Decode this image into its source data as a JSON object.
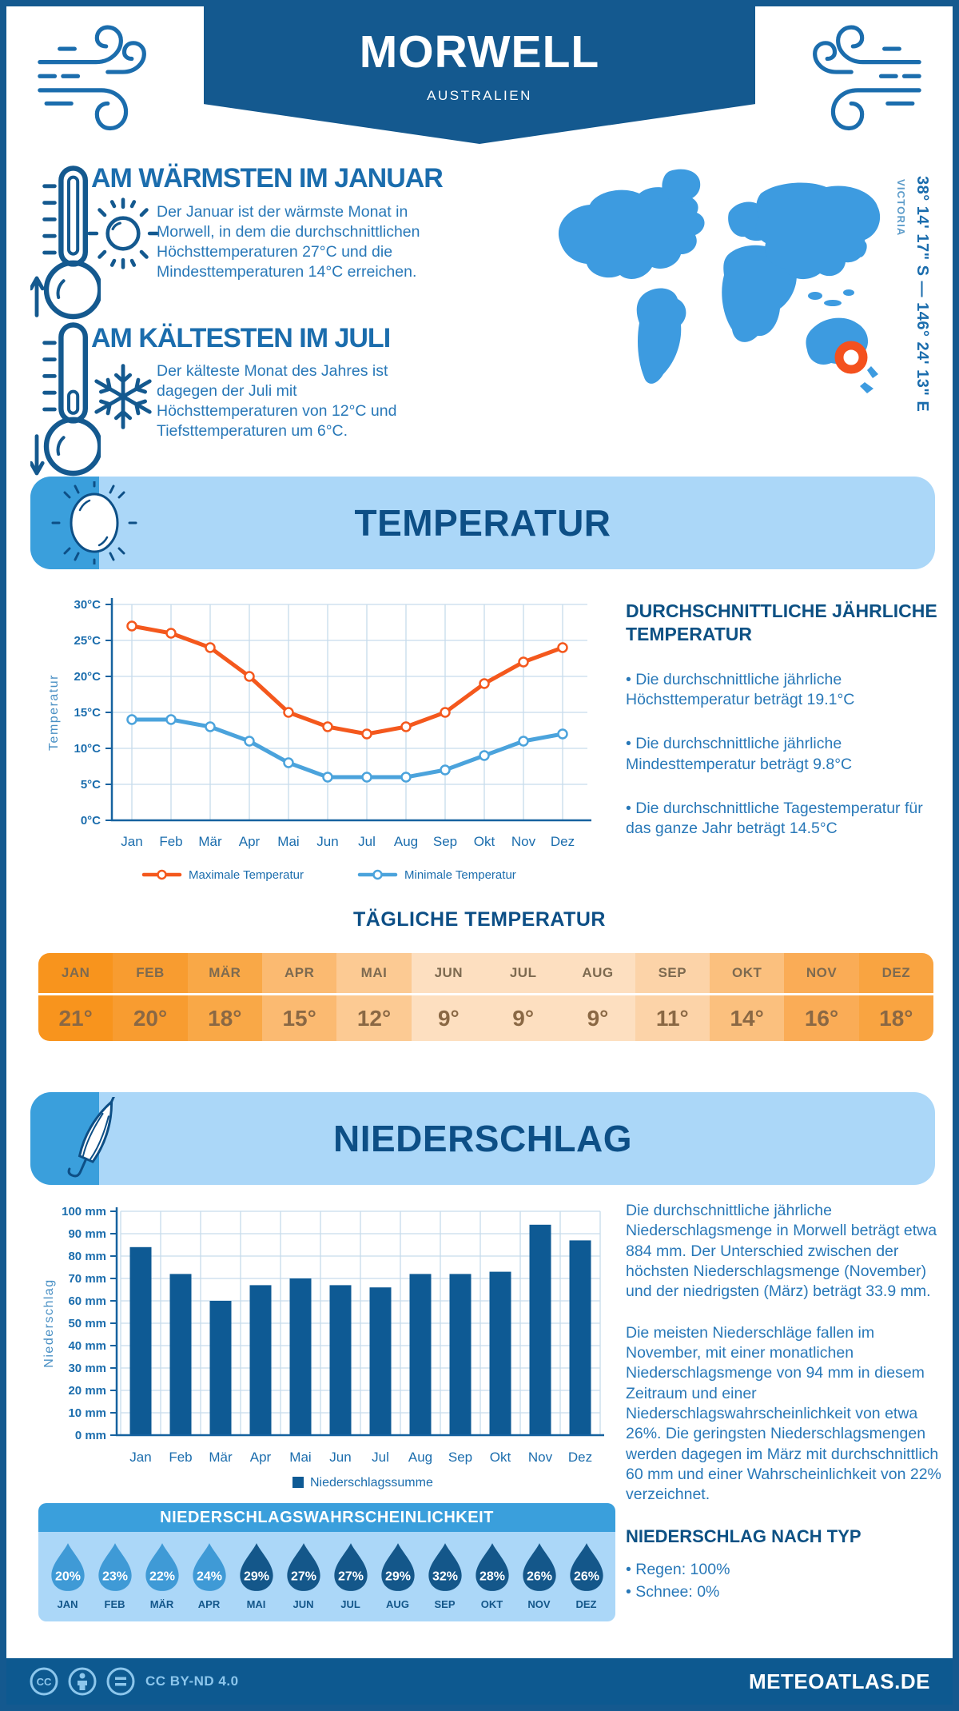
{
  "header": {
    "title": "MORWELL",
    "subtitle": "AUSTRALIEN"
  },
  "location": {
    "coordinates": "38° 14' 17\" S — 146° 24' 13\" E",
    "region": "VICTORIA"
  },
  "sections": {
    "warmest": {
      "title": "AM WÄRMSTEN IM JANUAR",
      "text": "Der Januar ist der wärmste Monat in Morwell, in dem die durchschnittlichen Höchsttemperaturen 27°C und die Mindesttemperaturen 14°C erreichen."
    },
    "coldest": {
      "title": "AM KÄLTESTEN IM JULI",
      "text": "Der kälteste Monat des Jahres ist dagegen der Juli mit Höchsttemperaturen von 12°C und Tiefsttemperaturen um 6°C."
    }
  },
  "temperature": {
    "banner_title": "TEMPERATUR",
    "annual": {
      "heading": "DURCHSCHNITTLICHE JÄHRLICHE TEMPERATUR",
      "bullets": [
        "• Die durchschnittliche jährliche Höchsttemperatur beträgt 19.1°C",
        "• Die durchschnittliche jährliche Mindesttemperatur beträgt 9.8°C",
        "• Die durchschnittliche Tagestemperatur für das ganze Jahr beträgt 14.5°C"
      ]
    },
    "daily": {
      "heading": "TÄGLICHE TEMPERATUR",
      "columns": [
        {
          "month": "JAN",
          "value": "21°",
          "color": "#F8941D"
        },
        {
          "month": "FEB",
          "value": "20°",
          "color": "#F89C30"
        },
        {
          "month": "MÄR",
          "value": "18°",
          "color": "#F9A847"
        },
        {
          "month": "APR",
          "value": "15°",
          "color": "#FBBA71"
        },
        {
          "month": "MAI",
          "value": "12°",
          "color": "#FCCA93"
        },
        {
          "month": "JUN",
          "value": "9°",
          "color": "#FDDFC0"
        },
        {
          "month": "JUL",
          "value": "9°",
          "color": "#FDDFC0"
        },
        {
          "month": "AUG",
          "value": "9°",
          "color": "#FDDFC0"
        },
        {
          "month": "SEP",
          "value": "11°",
          "color": "#FCD3A8"
        },
        {
          "month": "OKT",
          "value": "14°",
          "color": "#FBC07E"
        },
        {
          "month": "NOV",
          "value": "16°",
          "color": "#FAAC56"
        },
        {
          "month": "DEZ",
          "value": "18°",
          "color": "#F9A441"
        }
      ]
    }
  },
  "precipitation": {
    "banner_title": "NIEDERSCHLAG",
    "paragraphs": [
      "Die durchschnittliche jährliche Niederschlagsmenge in Morwell beträgt etwa 884 mm. Der Unterschied zwischen der höchsten Niederschlagsmenge (November) und der niedrigsten (März) beträgt 33.9 mm.",
      "Die meisten Niederschläge fallen im November, mit einer monatlichen Niederschlagsmenge von 94 mm in diesem Zeitraum und einer Niederschlagswahrscheinlichkeit von etwa 26%. Die geringsten Niederschlagsmengen werden dagegen im März mit durchschnittlich 60 mm und einer Wahrscheinlichkeit von 22% verzeichnet."
    ],
    "by_type": {
      "heading": "NIEDERSCHLAG NACH TYP",
      "items": [
        "• Regen: 100%",
        "• Schnee: 0%"
      ]
    },
    "probability": {
      "heading": "NIEDERSCHLAGSWAHRSCHEINLICHKEIT",
      "items": [
        {
          "month": "JAN",
          "value": "20%",
          "tone": "light"
        },
        {
          "month": "FEB",
          "value": "23%",
          "tone": "light"
        },
        {
          "month": "MÄR",
          "value": "22%",
          "tone": "light"
        },
        {
          "month": "APR",
          "value": "24%",
          "tone": "light"
        },
        {
          "month": "MAI",
          "value": "29%",
          "tone": "dark"
        },
        {
          "month": "JUN",
          "value": "27%",
          "tone": "dark"
        },
        {
          "month": "JUL",
          "value": "27%",
          "tone": "dark"
        },
        {
          "month": "AUG",
          "value": "29%",
          "tone": "dark"
        },
        {
          "month": "SEP",
          "value": "32%",
          "tone": "dark"
        },
        {
          "month": "OKT",
          "value": "28%",
          "tone": "dark"
        },
        {
          "month": "NOV",
          "value": "26%",
          "tone": "dark"
        },
        {
          "month": "DEZ",
          "value": "26%",
          "tone": "dark"
        }
      ]
    }
  },
  "chart_data": [
    {
      "type": "line",
      "title": "Temperatur Jahresverlauf",
      "x": [
        "Jan",
        "Feb",
        "Mär",
        "Apr",
        "Mai",
        "Jun",
        "Jul",
        "Aug",
        "Sep",
        "Okt",
        "Nov",
        "Dez"
      ],
      "ylabel": "Temperatur",
      "ylim": [
        0,
        30
      ],
      "ytick_step": 5,
      "ytick_suffix": "°C",
      "grid": true,
      "legend_position": "bottom",
      "series": [
        {
          "name": "Maximale Temperatur",
          "color": "#F4581D",
          "values": [
            27,
            26,
            24,
            20,
            15,
            13,
            12,
            13,
            15,
            19,
            22,
            24
          ]
        },
        {
          "name": "Minimale Temperatur",
          "color": "#4BA3DC",
          "values": [
            14,
            14,
            13,
            11,
            8,
            6,
            6,
            6,
            7,
            9,
            11,
            12
          ]
        }
      ]
    },
    {
      "type": "bar",
      "title": "Niederschlagssumme pro Monat",
      "x": [
        "Jan",
        "Feb",
        "Mär",
        "Apr",
        "Mai",
        "Jun",
        "Jul",
        "Aug",
        "Sep",
        "Okt",
        "Nov",
        "Dez"
      ],
      "ylabel": "Niederschlag",
      "ylim": [
        0,
        100
      ],
      "ytick_step": 10,
      "ytick_suffix": " mm",
      "grid": true,
      "legend_position": "bottom",
      "series": [
        {
          "name": "Niederschlagssumme",
          "color": "#0E5A94",
          "values": [
            84,
            72,
            60,
            67,
            70,
            67,
            66,
            72,
            72,
            73,
            94,
            87
          ]
        }
      ]
    }
  ],
  "footer": {
    "license": "CC BY-ND 4.0",
    "site": "METEOATLAS.DE"
  },
  "colors": {
    "primary_dark": "#14598F",
    "banner_light": "#ABD7F8",
    "banner_accent": "#3A9FDC",
    "heading_blue": "#0D4F86",
    "text_blue": "#2878B8",
    "axis_blue": "#1B6DAD",
    "grid_blue": "#C7DCEC",
    "map_blue": "#3D9BE0",
    "marker_ring": "#F4511E",
    "drop_light": "#3F9AD6",
    "drop_dark": "#14578A",
    "footer_light": "#8CC6EC"
  }
}
